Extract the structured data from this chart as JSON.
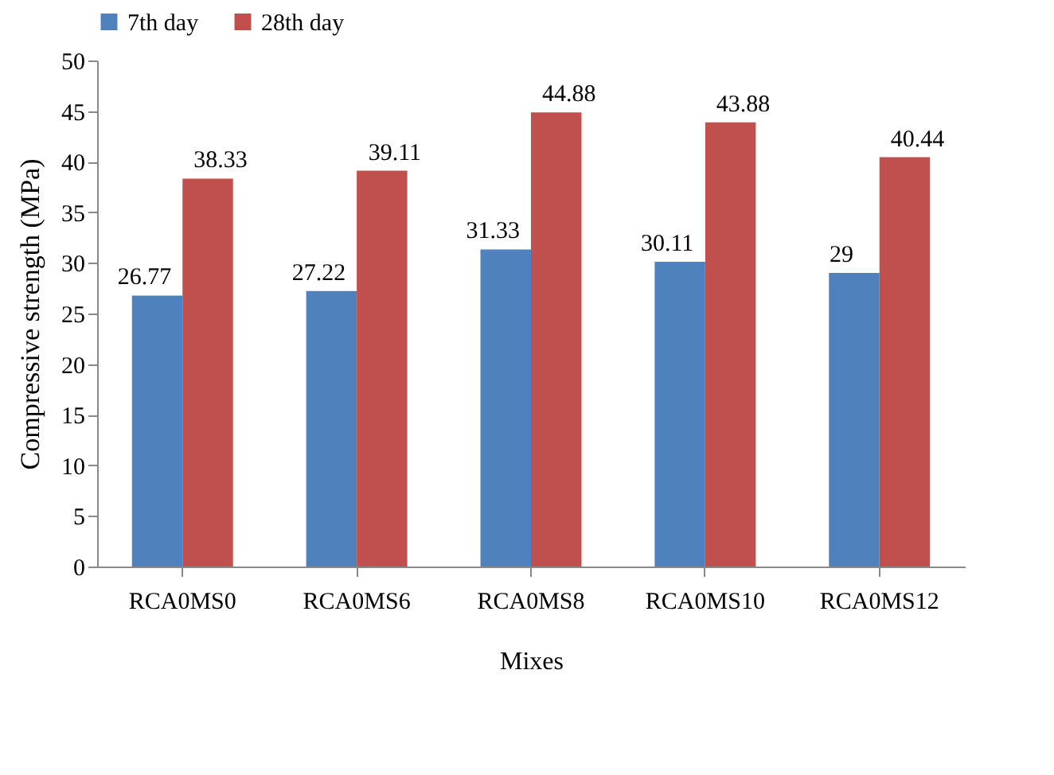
{
  "chart_data": {
    "type": "bar",
    "xlabel": "Mixes",
    "ylabel": "Compressive strength (MPa)",
    "categories": [
      "RCA0MS0",
      "RCA0MS6",
      "RCA0MS8",
      "RCA0MS10",
      "RCA0MS12"
    ],
    "series": [
      {
        "name": "7th day",
        "color": "#4f81bd",
        "values": [
          26.77,
          27.22,
          31.33,
          30.11,
          29
        ]
      },
      {
        "name": "28th day",
        "color": "#c0504d",
        "values": [
          38.33,
          39.11,
          44.88,
          43.88,
          40.44
        ]
      }
    ],
    "ylim": [
      0,
      50
    ],
    "yticks": [
      0,
      5,
      10,
      15,
      20,
      25,
      30,
      35,
      40,
      45,
      50
    ],
    "grid": false,
    "legend": "top",
    "data_labels": true
  }
}
